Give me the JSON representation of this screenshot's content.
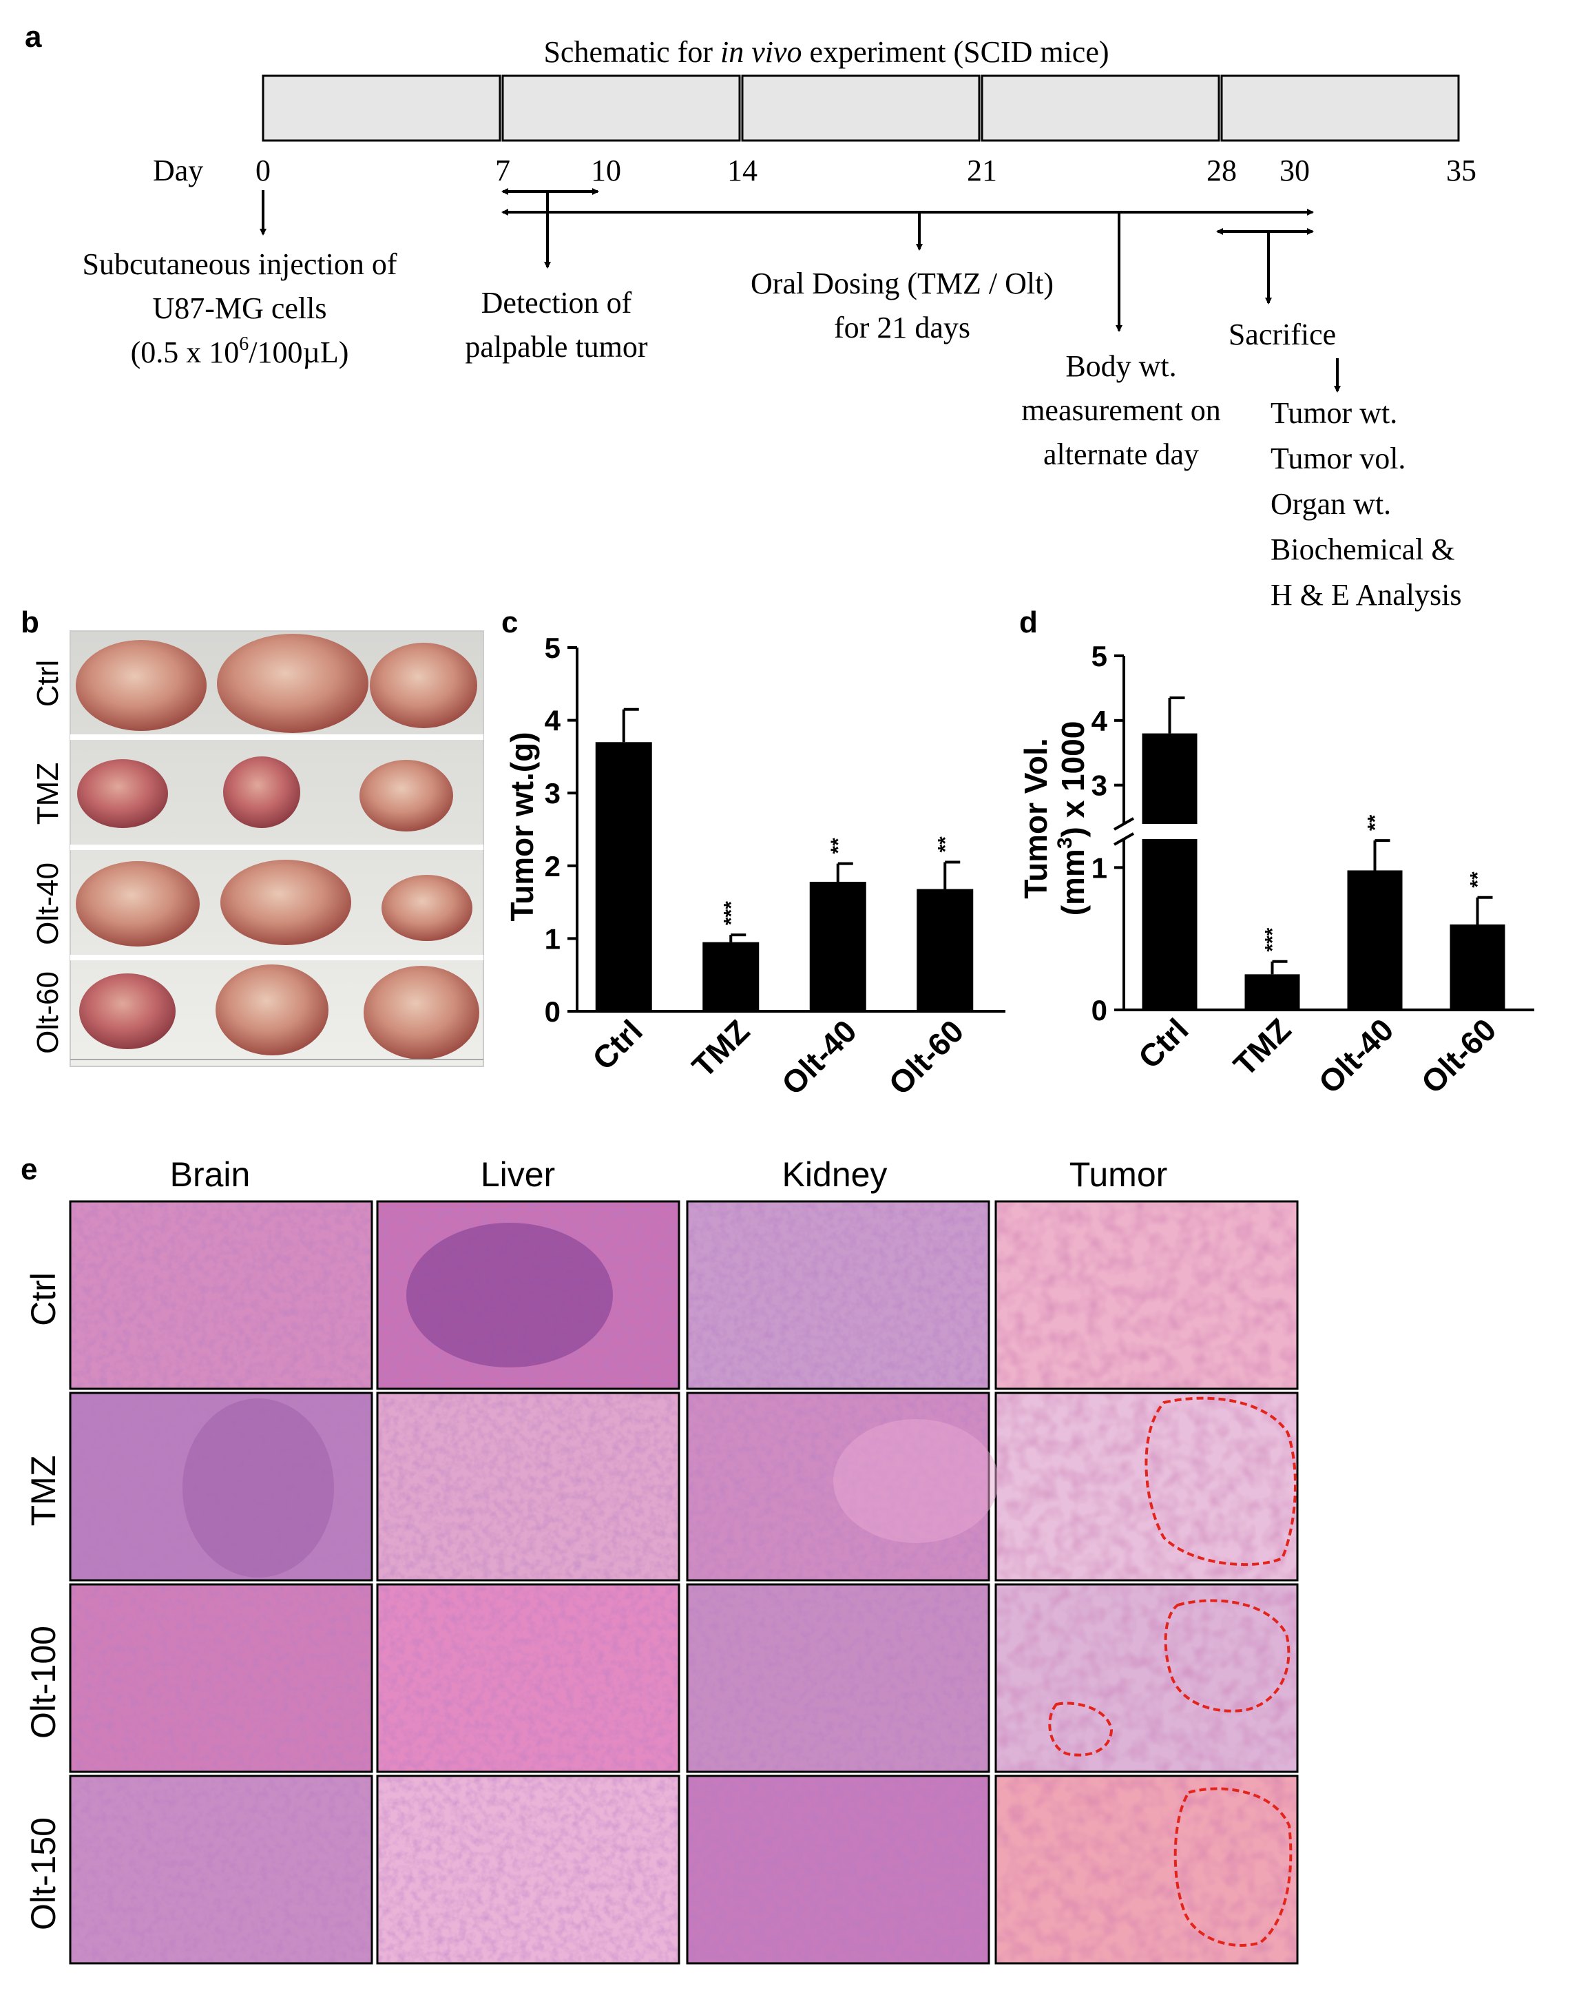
{
  "panel_a": {
    "letter": "a",
    "title_before": "Schematic for ",
    "title_italic": "in vivo",
    "title_after": " experiment (SCID mice)",
    "day_label": "Day",
    "ticks": [
      "0",
      "7",
      "10",
      "14",
      "21",
      "28",
      "30",
      "35"
    ],
    "injection": [
      "Subcutaneous injection of",
      "U87-MG cells"
    ],
    "injection_dose_prefix": "(0.5 x 10",
    "injection_dose_sup": "6",
    "injection_dose_suffix": "/100µL)",
    "detection": [
      "Detection of",
      "palpable tumor"
    ],
    "dosing": [
      "Oral Dosing (TMZ / Olt)",
      "for 21 days"
    ],
    "body_wt": [
      "Body wt.",
      "measurement on",
      "alternate day"
    ],
    "sacrifice": "Sacrifice",
    "endpoints": [
      "Tumor wt.",
      "Tumor vol.",
      "Organ wt.",
      "Biochemical &",
      "H & E Analysis"
    ]
  },
  "panel_b": {
    "letter": "b",
    "rows": [
      "Ctrl",
      "TMZ",
      "Olt-40",
      "Olt-60"
    ]
  },
  "chart_data": [
    {
      "panel": "c",
      "type": "bar",
      "ylabel": "Tumor wt.(g)",
      "categories": [
        "Ctrl",
        "TMZ",
        "Olt-40",
        "Olt-60"
      ],
      "values": [
        3.7,
        0.95,
        1.78,
        1.68
      ],
      "errors": [
        0.45,
        0.1,
        0.25,
        0.37
      ],
      "significance": [
        "",
        "***",
        "**",
        "**"
      ],
      "ylim": [
        0,
        5
      ],
      "yticks": [
        "0",
        "1",
        "2",
        "3",
        "4",
        "5"
      ],
      "bar_color": "#000000",
      "grid": false
    },
    {
      "panel": "d",
      "type": "bar",
      "ylabel_line1": "Tumor Vol.",
      "ylabel_line2_prefix": "(mm",
      "ylabel_line2_sup": "3",
      "ylabel_line2_suffix": ") x 1000",
      "categories": [
        "Ctrl",
        "TMZ",
        "Olt-40",
        "Olt-60"
      ],
      "values": [
        3.8,
        0.25,
        0.98,
        0.6
      ],
      "errors": [
        0.55,
        0.09,
        0.21,
        0.19
      ],
      "significance": [
        "",
        "***",
        "**",
        "**"
      ],
      "broken_axis": {
        "lower": [
          0,
          1.2
        ],
        "upper": [
          2.4,
          5
        ]
      },
      "yticks": [
        "0",
        "1",
        "3",
        "4",
        "5"
      ],
      "bar_color": "#000000",
      "grid": false
    }
  ],
  "panel_e": {
    "letter": "e",
    "columns": [
      "Brain",
      "Liver",
      "Kidney",
      "Tumor"
    ],
    "rows": [
      "Ctrl",
      "TMZ",
      "Olt-100",
      "Olt-150"
    ],
    "necrosis_outline_color": "#e3241b"
  }
}
